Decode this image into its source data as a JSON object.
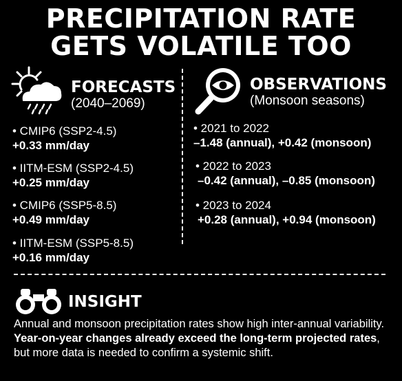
{
  "title": {
    "line1": "PRECIPITATION RATE",
    "line2": "GETS VOLATILE TOO"
  },
  "forecasts": {
    "heading": "FORECASTS",
    "subheading": "(2040–2069)",
    "icon": "weather-sun-cloud-rain-icon",
    "items": [
      {
        "label": "• CMIP6 (SSP2-4.5)",
        "value": "+0.33 mm/day"
      },
      {
        "label": "• IITM-ESM (SSP2-4.5)",
        "value": "+0.25 mm/day"
      },
      {
        "label": "• CMIP6 (SSP5-8.5)",
        "value": "+0.49 mm/day"
      },
      {
        "label": "• IITM-ESM (SSP5-8.5)",
        "value": "+0.16 mm/day"
      }
    ]
  },
  "observations": {
    "heading": "OBSERVATIONS",
    "subheading": "(Monsoon seasons)",
    "icon": "magnifying-glass-eye-icon",
    "items": [
      {
        "label": "• 2021 to 2022",
        "value": "–1.48 (annual), +0.42 (monsoon)"
      },
      {
        "label": "• 2022 to 2023",
        "value": "–0.42 (annual), –0.85 (monsoon)"
      },
      {
        "label": "• 2023 to 2024",
        "value": "+0.28 (annual), +0.94 (monsoon)"
      }
    ]
  },
  "insight": {
    "heading": "INSIGHT",
    "icon": "binoculars-icon",
    "text_part1": "Annual and monsoon precipitation rates show high inter-annual variability. ",
    "text_bold": "Year-on-year changes already exceed the long-term projected rates",
    "text_part2": ", but more data is needed to confirm a systemic shift."
  },
  "colors": {
    "background": "#000000",
    "foreground": "#ffffff"
  }
}
